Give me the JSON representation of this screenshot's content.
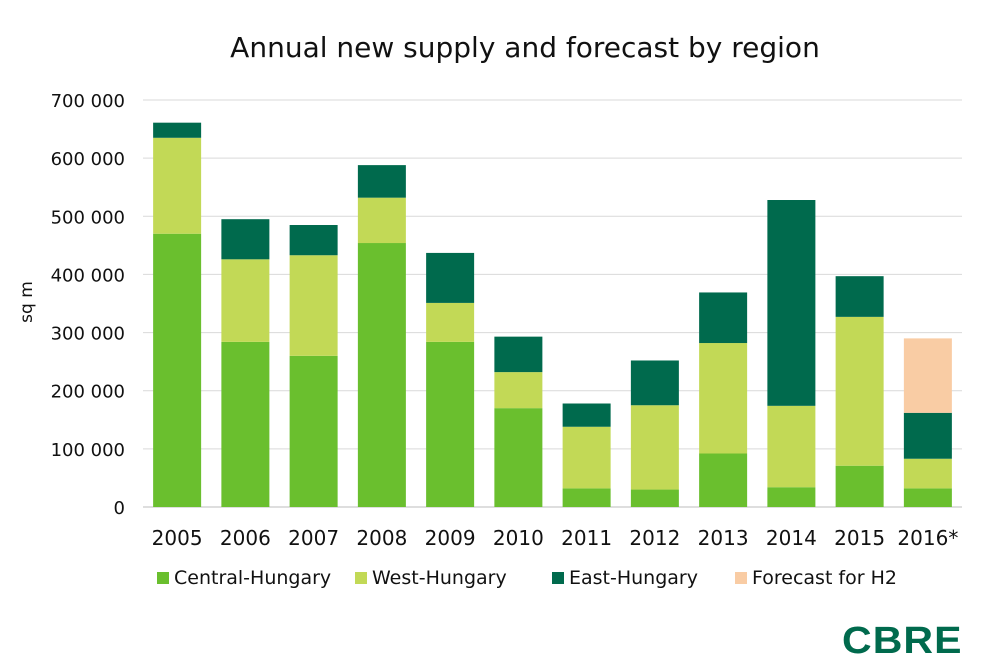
{
  "chart_data": {
    "type": "bar",
    "stacked": true,
    "title": "Annual new supply and forecast by region",
    "xlabel": "",
    "ylabel": "sq m",
    "ylim": [
      0,
      700000
    ],
    "yticks": [
      0,
      100000,
      200000,
      300000,
      400000,
      500000,
      600000,
      700000
    ],
    "ytick_labels": [
      "0",
      "100 000",
      "200 000",
      "300 000",
      "400 000",
      "500 000",
      "600 000",
      "700 000"
    ],
    "grid": true,
    "legend_position": "bottom",
    "categories": [
      "2005",
      "2006",
      "2007",
      "2008",
      "2009",
      "2010",
      "2011",
      "2012",
      "2013",
      "2014",
      "2015",
      "2016*"
    ],
    "series": [
      {
        "name": "Central-Hungary",
        "color": "#6abf2e",
        "values": [
          470000,
          284000,
          260000,
          454000,
          284000,
          170000,
          32000,
          30000,
          92000,
          34000,
          71000,
          32000
        ]
      },
      {
        "name": "West-Hungary",
        "color": "#c2d956",
        "values": [
          165000,
          142000,
          173000,
          78000,
          67000,
          62000,
          106000,
          145000,
          190000,
          140000,
          256000,
          51000
        ]
      },
      {
        "name": "East-Hungary",
        "color": "#006a4d",
        "values": [
          26000,
          69000,
          52000,
          56000,
          86000,
          61000,
          40000,
          77000,
          87000,
          354000,
          70000,
          79000
        ]
      },
      {
        "name": "Forecast for H2",
        "color": "#f9cca4",
        "values": [
          0,
          0,
          0,
          0,
          0,
          0,
          0,
          0,
          0,
          0,
          0,
          128000
        ]
      }
    ]
  },
  "brand": {
    "logo_text": "CBRE",
    "color": "#006a4d"
  }
}
